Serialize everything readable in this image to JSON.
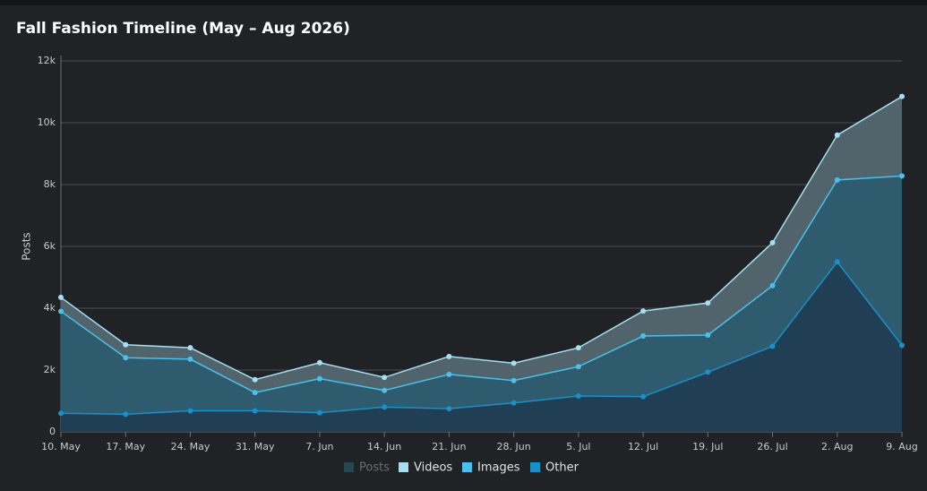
{
  "chart_data": {
    "type": "stacked_area",
    "title": "Fall Fashion Timeline (May – Aug 2026)",
    "y_label": "Posts",
    "categories": [
      "10. May",
      "17. May",
      "24. May",
      "31. May",
      "7. Jun",
      "14. Jun",
      "21. Jun",
      "28. Jun",
      "5. Jul",
      "12. Jul",
      "19. Jul",
      "26. Jul",
      "2. Aug",
      "9. Aug"
    ],
    "series": [
      {
        "name": "Posts",
        "color": "#2e5566",
        "visible": false,
        "values": [
          null,
          null,
          null,
          null,
          null,
          null,
          null,
          null,
          null,
          null,
          null,
          null,
          null,
          null
        ]
      },
      {
        "name": "Videos",
        "color": "#a6def2",
        "area_color": "#52646b",
        "visible": true,
        "values": [
          450,
          420,
          370,
          420,
          520,
          420,
          580,
          560,
          610,
          810,
          1040,
          1390,
          1450,
          2570
        ]
      },
      {
        "name": "Images",
        "color": "#4cc0ea",
        "area_color": "#2e5b6e",
        "visible": true,
        "values": [
          3300,
          1830,
          1670,
          590,
          1100,
          540,
          1110,
          720,
          950,
          1960,
          1200,
          1960,
          2650,
          5480
        ]
      },
      {
        "name": "Other",
        "color": "#1a90c8",
        "area_color": "#203f55",
        "visible": true,
        "values": [
          600,
          570,
          680,
          680,
          620,
          800,
          750,
          940,
          1160,
          1140,
          1930,
          2770,
          5500,
          2800
        ]
      }
    ],
    "ylim": [
      0,
      12000
    ],
    "yticks": [
      0,
      {
        "value": 2000,
        "label": "2k"
      },
      {
        "value": 4000,
        "label": "4k"
      },
      {
        "value": 6000,
        "label": "6k"
      },
      {
        "value": 8000,
        "label": "8k"
      },
      {
        "value": 10000,
        "label": "10k"
      },
      {
        "value": 12000,
        "label": "12k"
      }
    ],
    "grid": true
  }
}
